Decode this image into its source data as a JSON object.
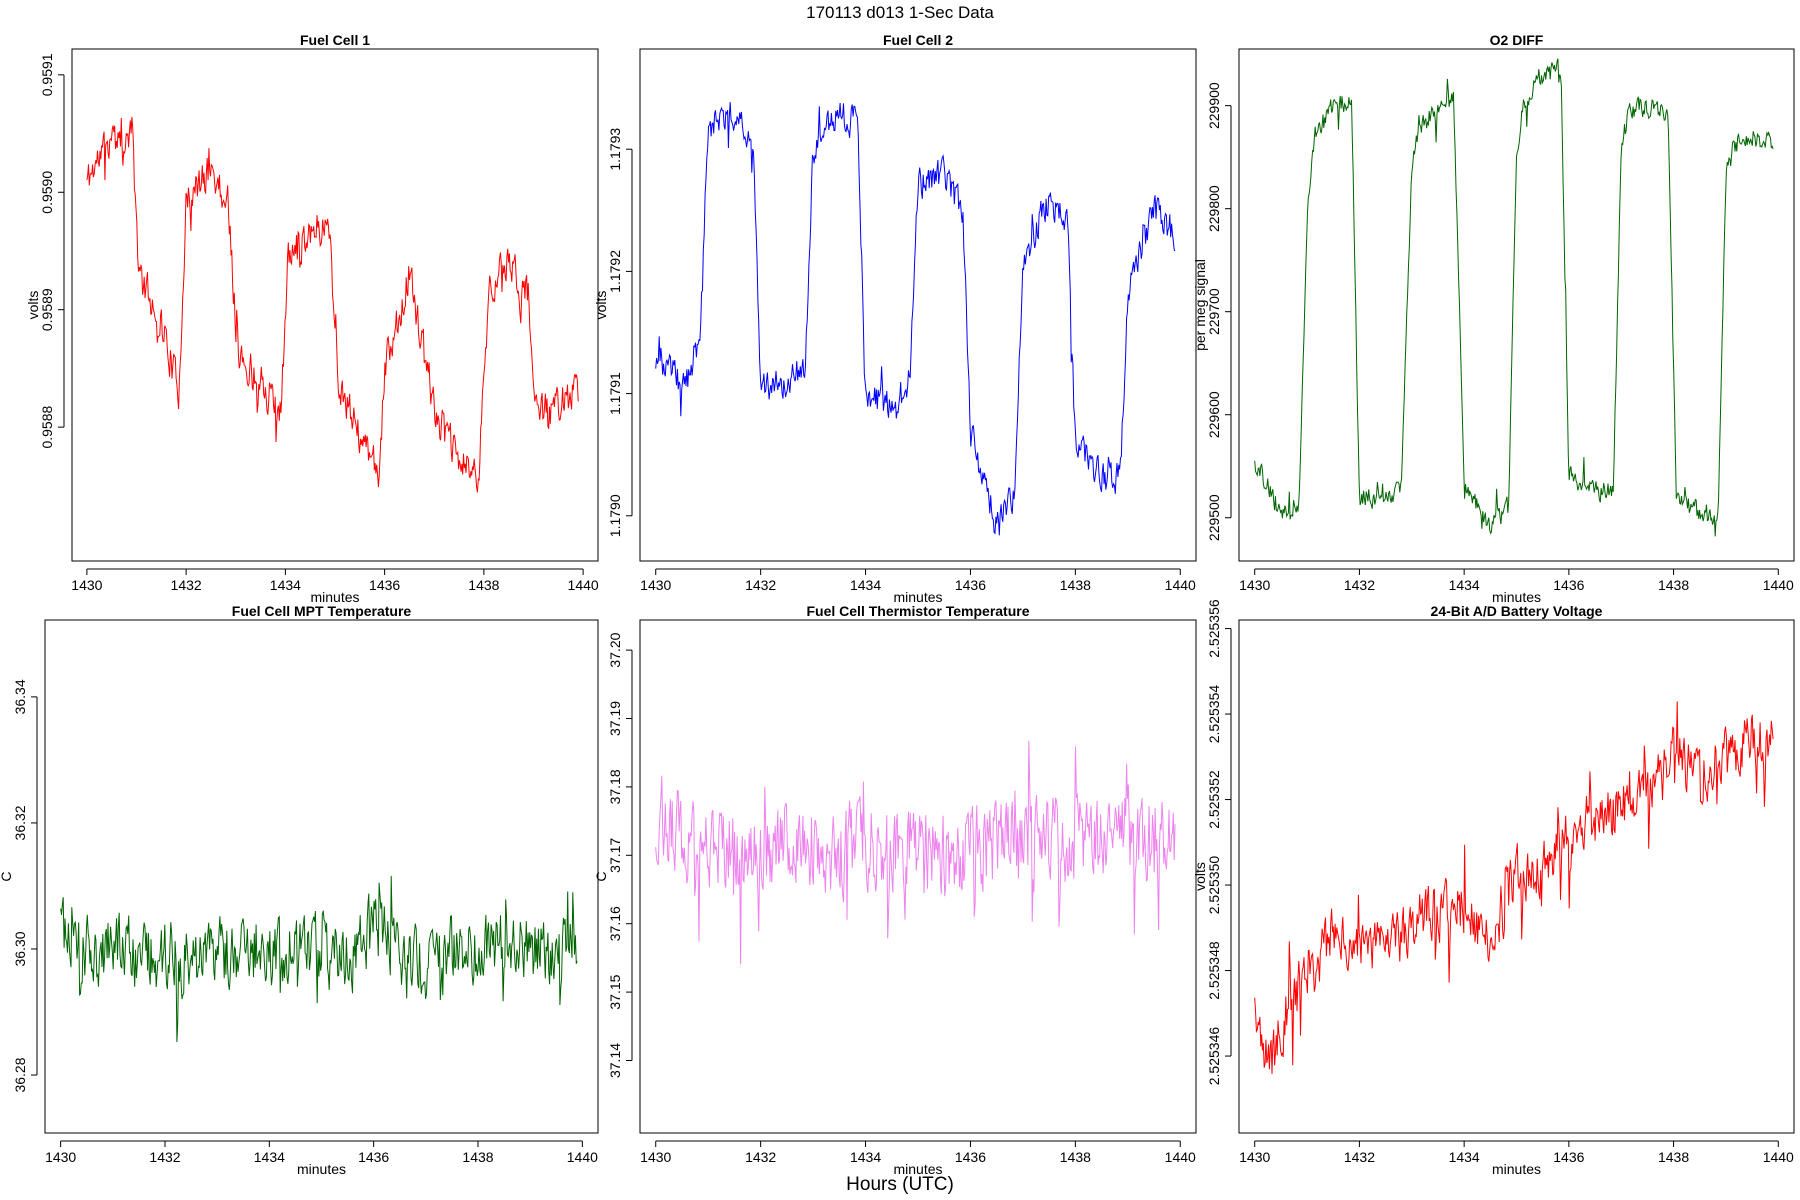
{
  "figure": {
    "title": "170113   d013   1-Sec Data",
    "footer": "Hours (UTC)"
  },
  "chart_data": [
    {
      "type": "line",
      "title": "Fuel Cell 1",
      "xlabel": "minutes",
      "ylabel": "volts",
      "xlim": [
        1429.7,
        1440.3
      ],
      "ylim": [
        0.958686,
        0.959122
      ],
      "x_ticks": [
        1430,
        1432,
        1434,
        1436,
        1438,
        1440
      ],
      "y_ticks": [
        0.9588,
        0.9589,
        0.959,
        0.9591
      ],
      "y_tick_labels": [
        "0.9588",
        "0.9589",
        "0.9590",
        "0.9591"
      ],
      "color": "#ff0000",
      "series": [
        {
          "x": [
            1430,
            1430.5,
            1430.75,
            1430.9,
            1431.05,
            1431.5,
            1431.85,
            1432.0,
            1432.5,
            1432.85,
            1433.05,
            1433.5,
            1433.9,
            1434.05,
            1434.5,
            1434.9,
            1435.05,
            1435.5,
            1435.9,
            1436.0,
            1436.5,
            1436.9,
            1437.05,
            1437.5,
            1437.9,
            1438.1,
            1438.5,
            1438.9,
            1439.05,
            1439.5,
            1439.9
          ],
          "y": [
            0.95901,
            0.95905,
            0.95903,
            0.95906,
            0.95893,
            0.95889,
            0.95883,
            0.95899,
            0.95902,
            0.95899,
            0.95886,
            0.95884,
            0.95881,
            0.95894,
            0.95897,
            0.95897,
            0.95884,
            0.95879,
            0.95876,
            0.95885,
            0.95893,
            0.95884,
            0.95881,
            0.95877,
            0.95876,
            0.95892,
            0.95894,
            0.95891,
            0.95881,
            0.95882,
            0.95883
          ]
        }
      ]
    },
    {
      "type": "line",
      "title": "Fuel Cell 2",
      "xlabel": "minutes",
      "ylabel": "volts",
      "xlim": [
        1429.7,
        1440.3
      ],
      "ylim": [
        1.178963,
        1.179382
      ],
      "x_ticks": [
        1430,
        1432,
        1434,
        1436,
        1438,
        1440
      ],
      "y_ticks": [
        1.179,
        1.1791,
        1.1792,
        1.1793
      ],
      "y_tick_labels": [
        "1.1790",
        "1.1791",
        "1.1792",
        "1.1793"
      ],
      "color": "#0000ff",
      "series": [
        {
          "x": [
            1430,
            1430.5,
            1430.85,
            1431.0,
            1431.5,
            1431.85,
            1432.0,
            1432.5,
            1432.85,
            1433.0,
            1433.5,
            1433.85,
            1434.0,
            1434.5,
            1434.85,
            1435.0,
            1435.5,
            1435.85,
            1436.0,
            1436.5,
            1436.85,
            1437.0,
            1437.5,
            1437.85,
            1438.0,
            1438.5,
            1438.85,
            1439.0,
            1439.5,
            1439.9
          ],
          "y": [
            1.17913,
            1.17911,
            1.17914,
            1.17932,
            1.17933,
            1.17931,
            1.17911,
            1.17911,
            1.17912,
            1.1793,
            1.17933,
            1.17932,
            1.1791,
            1.17909,
            1.17911,
            1.17927,
            1.17928,
            1.17925,
            1.17907,
            1.17899,
            1.17902,
            1.17921,
            1.17926,
            1.17924,
            1.17906,
            1.17903,
            1.17903,
            1.17918,
            1.17925,
            1.17923
          ]
        }
      ]
    },
    {
      "type": "line",
      "title": "O2 DIFF",
      "xlabel": "minutes",
      "ylabel": "per meg signal",
      "xlim": [
        1429.7,
        1440.3
      ],
      "ylim": [
        229458,
        229955
      ],
      "x_ticks": [
        1430,
        1432,
        1434,
        1436,
        1438,
        1440
      ],
      "y_ticks": [
        229500,
        229600,
        229700,
        229800,
        229900
      ],
      "y_tick_labels": [
        "229500",
        "229600",
        "229700",
        "229800",
        "229900"
      ],
      "color": "#006400",
      "series": [
        {
          "x": [
            1430,
            1430.5,
            1430.85,
            1431.0,
            1431.15,
            1431.5,
            1431.85,
            1432.0,
            1432.5,
            1432.8,
            1433.0,
            1433.15,
            1433.5,
            1433.8,
            1434.0,
            1434.5,
            1434.85,
            1435.0,
            1435.15,
            1435.5,
            1435.85,
            1436.0,
            1436.5,
            1436.85,
            1437.0,
            1437.15,
            1437.5,
            1437.9,
            1438.05,
            1438.5,
            1438.85,
            1439.0,
            1439.15,
            1439.5,
            1439.9
          ],
          "y": [
            229555,
            229505,
            229515,
            229800,
            229870,
            229900,
            229905,
            229520,
            229520,
            229525,
            229840,
            229880,
            229895,
            229905,
            229530,
            229495,
            229510,
            229855,
            229905,
            229930,
            229935,
            229540,
            229525,
            229530,
            229860,
            229895,
            229900,
            229890,
            229520,
            229505,
            229500,
            229830,
            229860,
            229870,
            229865
          ]
        }
      ]
    },
    {
      "type": "line",
      "title": "Fuel Cell MPT Temperature",
      "xlabel": "minutes",
      "ylabel": "C",
      "xlim": [
        1429.7,
        1440.3
      ],
      "ylim": [
        36.2708,
        36.3522
      ],
      "x_ticks": [
        1430,
        1432,
        1434,
        1436,
        1438,
        1440
      ],
      "y_ticks": [
        36.28,
        36.3,
        36.32,
        36.34
      ],
      "y_tick_labels": [
        "36.28",
        "36.30",
        "36.32",
        "36.34"
      ],
      "color": "#006400",
      "series": [
        {
          "x": [
            1430.0,
            1430.6,
            1431.1,
            1431.6,
            1432.0,
            1432.6,
            1433.0,
            1433.5,
            1434.0,
            1434.6,
            1435.0,
            1435.6,
            1436.05,
            1436.5,
            1437.0,
            1437.5,
            1438.0,
            1438.6,
            1439.0,
            1439.5,
            1439.9
          ],
          "y": [
            36.303,
            36.299,
            36.301,
            36.298,
            36.3,
            36.297,
            36.299,
            36.3,
            36.298,
            36.301,
            36.299,
            36.298,
            36.304,
            36.299,
            36.298,
            36.3,
            36.299,
            36.302,
            36.3,
            36.299,
            36.3
          ]
        }
      ]
    },
    {
      "type": "line",
      "title": "Fuel Cell Thermistor Temperature",
      "xlabel": "minutes",
      "ylabel": "C",
      "xlim": [
        1429.7,
        1440.3
      ],
      "ylim": [
        37.1294,
        37.2044
      ],
      "x_ticks": [
        1430,
        1432,
        1434,
        1436,
        1438,
        1440
      ],
      "y_ticks": [
        37.14,
        37.15,
        37.16,
        37.17,
        37.18,
        37.19,
        37.2
      ],
      "y_tick_labels": [
        "37.14",
        "37.15",
        "37.16",
        "37.17",
        "37.18",
        "37.19",
        "37.20"
      ],
      "color": "#ee82ee",
      "series": [
        {
          "x": [
            1430.0,
            1430.5,
            1431.0,
            1431.5,
            1432.0,
            1432.5,
            1433.0,
            1433.5,
            1434.0,
            1434.5,
            1435.0,
            1435.5,
            1436.0,
            1436.5,
            1437.0,
            1437.5,
            1438.0,
            1438.5,
            1439.0,
            1439.5,
            1439.9
          ],
          "y": [
            37.176,
            37.173,
            37.172,
            37.171,
            37.17,
            37.172,
            37.171,
            37.17,
            37.172,
            37.171,
            37.172,
            37.17,
            37.171,
            37.172,
            37.171,
            37.173,
            37.172,
            37.171,
            37.173,
            37.172,
            37.172
          ]
        }
      ]
    },
    {
      "type": "line",
      "title": "24-Bit A/D Battery Voltage",
      "xlabel": "minutes",
      "ylabel": "volts",
      "xlim": [
        1429.7,
        1440.3
      ],
      "ylim": [
        2.5253442,
        2.5253562
      ],
      "x_ticks": [
        1430,
        1432,
        1434,
        1436,
        1438,
        1440
      ],
      "y_ticks": [
        2.525346,
        2.525348,
        2.52535,
        2.525352,
        2.525354,
        2.525356
      ],
      "y_tick_labels": [
        "2.525346",
        "2.525348",
        "2.525350",
        "2.525352",
        "2.525354",
        "2.525356"
      ],
      "color": "#ff0000",
      "series": [
        {
          "x": [
            1430.0,
            1430.3,
            1430.7,
            1431.0,
            1431.5,
            1432.0,
            1432.5,
            1433.0,
            1433.5,
            1434.0,
            1434.5,
            1435.0,
            1435.5,
            1436.0,
            1436.5,
            1437.0,
            1437.5,
            1438.0,
            1438.5,
            1439.0,
            1439.5,
            1439.9
          ],
          "y": [
            2.5253468,
            2.5253458,
            2.5253474,
            2.5253478,
            2.5253488,
            2.5253486,
            2.5253484,
            2.5253492,
            2.5253494,
            2.5253494,
            2.5253488,
            2.5253502,
            2.5253504,
            2.5253512,
            2.5253516,
            2.5253518,
            2.525352,
            2.525353,
            2.5253526,
            2.525353,
            2.5253534,
            2.5253534
          ]
        }
      ]
    }
  ]
}
